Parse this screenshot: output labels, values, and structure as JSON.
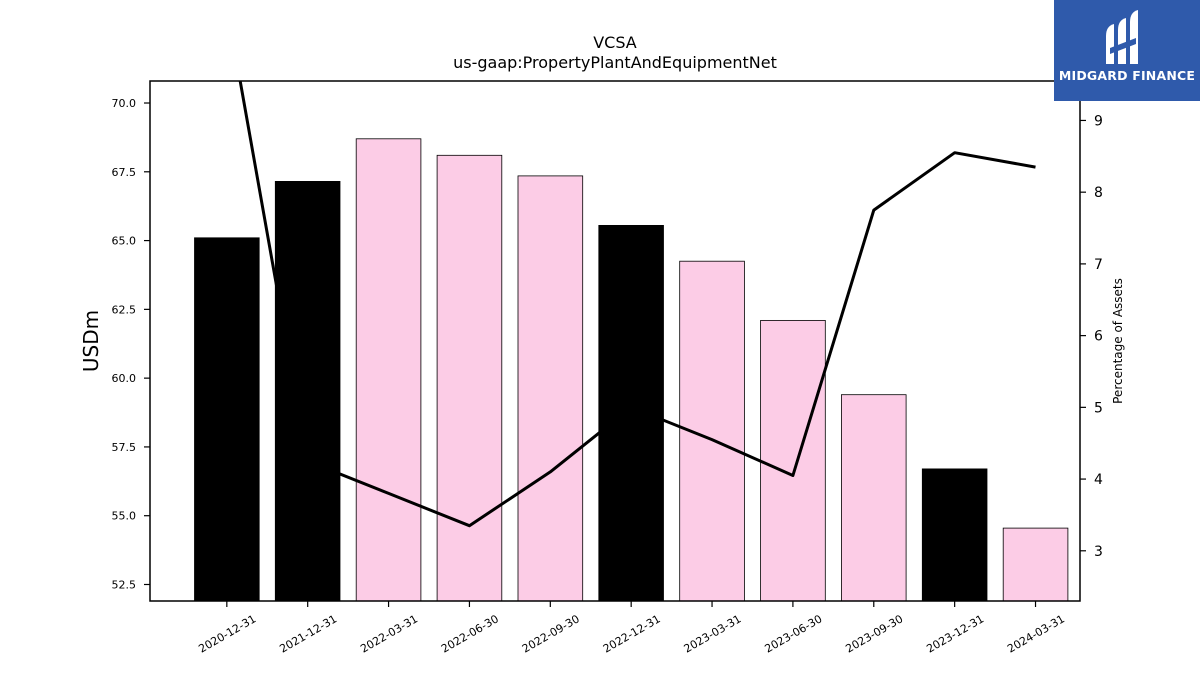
{
  "chart_data": {
    "type": "bar",
    "title": "VCSA",
    "subtitle": "us-gaap:PropertyPlantAndEquipmentNet",
    "ylabel": "USDm",
    "y2label": "Percentage of Assets",
    "categories": [
      "2020-12-31",
      "2021-12-31",
      "2022-03-31",
      "2022-06-30",
      "2022-09-30",
      "2022-12-31",
      "2023-03-31",
      "2023-06-30",
      "2023-09-30",
      "2023-12-31",
      "2024-03-31"
    ],
    "values": [
      65.1,
      67.15,
      68.7,
      68.1,
      67.35,
      65.55,
      64.25,
      62.1,
      59.4,
      56.7,
      54.55
    ],
    "bar_types": [
      "annual",
      "annual",
      "quarterly",
      "quarterly",
      "quarterly",
      "annual",
      "quarterly",
      "quarterly",
      "quarterly",
      "annual",
      "quarterly"
    ],
    "colors": {
      "annual": "#000000",
      "quarterly": "#fccce6",
      "line": "#000000"
    },
    "line_series": {
      "name": "",
      "values": [
        10.6,
        4.25,
        3.8,
        3.35,
        4.1,
        5.0,
        4.55,
        4.05,
        7.75,
        8.55,
        8.35
      ]
    },
    "ylim": [
      51.9,
      70.8
    ],
    "y2lim": [
      2.3,
      9.55
    ],
    "yticks": [
      "52.5",
      "55.0",
      "57.5",
      "60.0",
      "62.5",
      "65.0",
      "67.5",
      "70.0"
    ],
    "y2ticks": [
      "3",
      "4",
      "5",
      "6",
      "7",
      "8",
      "9"
    ],
    "grid": false
  },
  "logo": {
    "text": "MIDGARD FINANCE"
  }
}
